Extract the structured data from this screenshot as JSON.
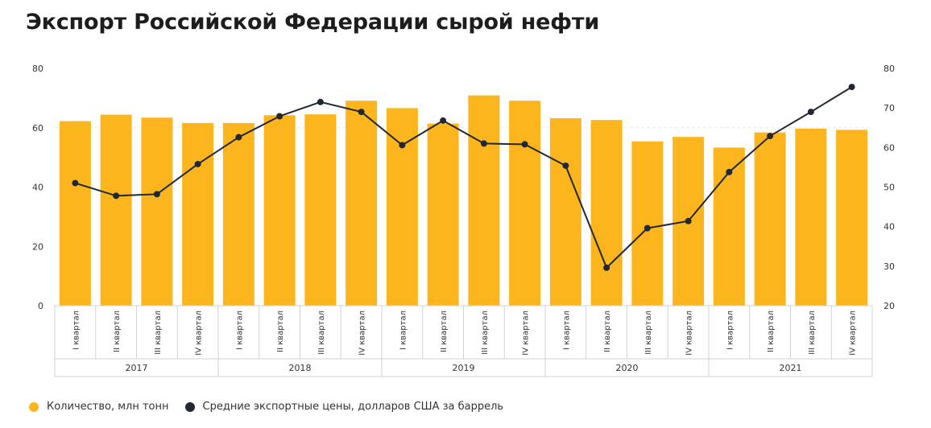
{
  "title": "Экспорт Российской Федерации сырой нефти",
  "legend": {
    "quantity_label": "Количество, млн тонн",
    "price_label": "Средние экспортные цены, долларов США за баррель"
  },
  "colors": {
    "bar": "#fdb51d",
    "line": "#222833",
    "axis_text": "#333333",
    "grid": "#e6e6e6",
    "category_border": "#cfd3dc"
  },
  "chart_data": {
    "type": "bar",
    "title": "Экспорт Российской Федерации сырой нефти",
    "categories": [
      "I квартал",
      "II квартал",
      "III квартал",
      "IV квартал",
      "I квартал",
      "II квартал",
      "III квартал",
      "IV квартал",
      "I квартал",
      "II квартал",
      "III квартал",
      "IV квартал",
      "I квартал",
      "II квартал",
      "III квартал",
      "IV квартал",
      "I квартал",
      "II квартал",
      "III квартал",
      "IV квартал"
    ],
    "groups": [
      {
        "label": "2017",
        "span": 4
      },
      {
        "label": "2018",
        "span": 4
      },
      {
        "label": "2019",
        "span": 4
      },
      {
        "label": "2020",
        "span": 4
      },
      {
        "label": "2021",
        "span": 4
      }
    ],
    "series": [
      {
        "name": "Количество, млн тонн",
        "type": "bar",
        "axis": "left",
        "values": [
          62.2,
          64.4,
          63.4,
          61.6,
          61.6,
          64.2,
          64.5,
          69.1,
          66.6,
          61.4,
          70.9,
          69.1,
          63.2,
          62.6,
          55.4,
          56.9,
          53.3,
          58.4,
          59.7,
          59.3
        ]
      },
      {
        "name": "Средние экспортные цены, долларов США за баррель",
        "type": "line",
        "axis": "right",
        "values": [
          51.0,
          47.8,
          48.2,
          55.8,
          62.6,
          67.9,
          71.5,
          69.0,
          60.6,
          66.8,
          61.0,
          60.8,
          55.4,
          29.6,
          39.6,
          41.4,
          53.8,
          62.9,
          69.0,
          75.3
        ]
      }
    ],
    "y_left": {
      "min": 0,
      "max": 80,
      "ticks": [
        0,
        20,
        40,
        60,
        80
      ]
    },
    "y_right": {
      "min": 20,
      "max": 80,
      "ticks": [
        20,
        30,
        40,
        50,
        60,
        70,
        80
      ]
    },
    "grid": false,
    "legend_position": "bottom-left"
  }
}
